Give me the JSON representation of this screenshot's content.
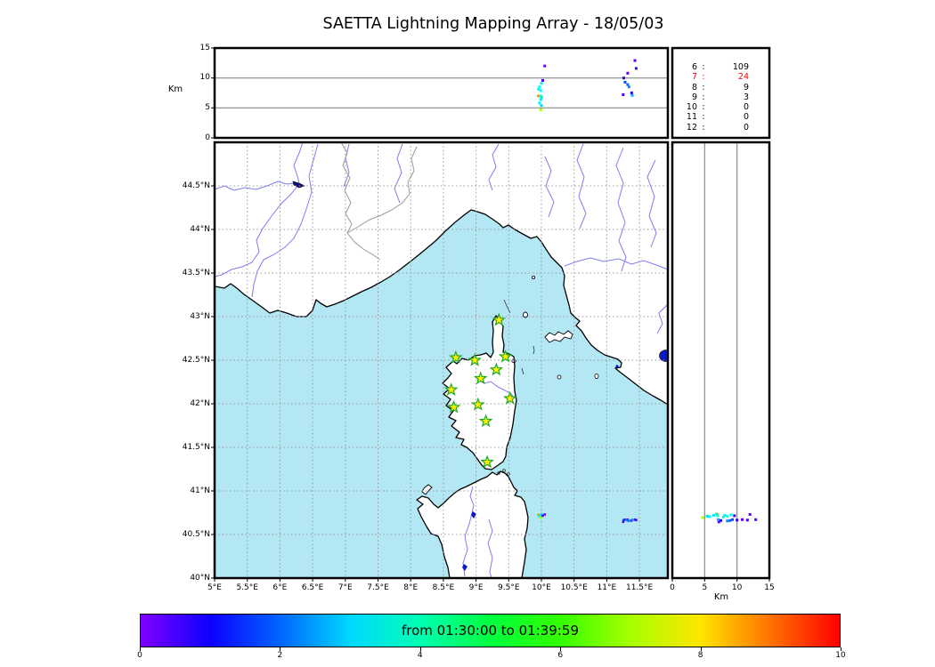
{
  "title": "SAETTA Lightning Mapping Array - 18/05/03",
  "axes": {
    "km_label_top": "Km",
    "km_label_right": "Km",
    "alt_ticks": [
      "0",
      "5",
      "10",
      "15"
    ],
    "lat_ticks": [
      "44.5°N",
      "44°N",
      "43.5°N",
      "43°N",
      "42.5°N",
      "42°N",
      "41.5°N",
      "41°N",
      "40.5°N",
      "40°N"
    ],
    "lon_ticks": [
      "5°E",
      "5.5°E",
      "6°E",
      "6.5°E",
      "7°E",
      "7.5°E",
      "8°E",
      "8.5°E",
      "9°E",
      "9.5°E",
      "10°E",
      "10.5°E",
      "11°E",
      "11.5°E"
    ]
  },
  "station_counts": {
    "rows": [
      {
        "station": "6",
        "count": "109",
        "color": "#000000"
      },
      {
        "station": "7",
        "count": "24",
        "color": "#ff0000"
      },
      {
        "station": "8",
        "count": "9",
        "color": "#000000"
      },
      {
        "station": "9",
        "count": "3",
        "color": "#000000"
      },
      {
        "station": "10",
        "count": "0",
        "color": "#000000"
      },
      {
        "station": "11",
        "count": "0",
        "color": "#000000"
      },
      {
        "station": "12",
        "count": "0",
        "color": "#000000"
      }
    ]
  },
  "colorbar": {
    "label": "from 01:30:00 to 01:39:59",
    "ticks": [
      "0",
      "2",
      "4",
      "6",
      "8",
      "10"
    ],
    "min": 0,
    "max": 10,
    "colormap": "rainbow"
  },
  "map_colors": {
    "sea": "#b2e7f3",
    "land": "#ffffff",
    "coast": "#000000",
    "river": "#7d7df0",
    "border": "#999999",
    "lake": "#0a18c8",
    "grid": "#999999",
    "star_fill": "#ffee00",
    "star_edge": "#22aa22",
    "highlight_red": "#ff0000"
  },
  "chart_data": {
    "type": "scatter",
    "title": "SAETTA Lightning Mapping Array - 18/05/03",
    "panels": [
      {
        "id": "top-lon-alt",
        "x": "longitude_deg_E",
        "xlim": [
          5,
          11.93
        ],
        "y": "altitude_km",
        "ylim": [
          0,
          15
        ],
        "yticks": [
          0,
          5,
          10,
          15
        ],
        "grid": "horizontal lines at 5 and 10 km"
      },
      {
        "id": "map-lon-lat",
        "xlim": [
          5,
          11.93
        ],
        "ylim": [
          40,
          45
        ],
        "grid": "dotted graticule every 0.5 degree"
      },
      {
        "id": "right-alt-lat",
        "x": "altitude_km",
        "xlim": [
          0,
          15
        ],
        "xticks": [
          0,
          5,
          10,
          15
        ],
        "y": "latitude_deg_N",
        "ylim": [
          40,
          45
        ],
        "grid": "vertical lines at 5 and 10 km"
      }
    ],
    "station_count_table": [
      [
        "6",
        109
      ],
      [
        "7",
        24
      ],
      [
        "8",
        9
      ],
      [
        "9",
        3
      ],
      [
        "10",
        0
      ],
      [
        "11",
        0
      ],
      [
        "12",
        0
      ]
    ],
    "highlighted_station_row": "7",
    "lma_stations": [
      {
        "lon": 9.35,
        "lat": 42.96
      },
      {
        "lon": 8.69,
        "lat": 42.53
      },
      {
        "lon": 8.98,
        "lat": 42.5
      },
      {
        "lon": 9.45,
        "lat": 42.54
      },
      {
        "lon": 9.31,
        "lat": 42.39
      },
      {
        "lon": 9.07,
        "lat": 42.29
      },
      {
        "lon": 8.62,
        "lat": 42.16
      },
      {
        "lon": 9.52,
        "lat": 42.06
      },
      {
        "lon": 9.03,
        "lat": 41.99
      },
      {
        "lon": 8.66,
        "lat": 41.96
      },
      {
        "lon": 9.15,
        "lat": 41.8
      },
      {
        "lon": 9.17,
        "lat": 41.33
      }
    ],
    "sources": [
      {
        "lon": 10.05,
        "lat": 40.73,
        "alt_km": 12.0,
        "t_min": 0.2
      },
      {
        "lon": 10.0,
        "lat": 40.725,
        "alt_km": 9.1,
        "t_min": 3.2
      },
      {
        "lon": 9.97,
        "lat": 40.71,
        "alt_km": 8.5,
        "t_min": 3.4
      },
      {
        "lon": 9.955,
        "lat": 40.72,
        "alt_km": 8.1,
        "t_min": 3.5
      },
      {
        "lon": 9.99,
        "lat": 40.7,
        "alt_km": 7.9,
        "t_min": 3.3
      },
      {
        "lon": 9.955,
        "lat": 40.725,
        "alt_km": 7.0,
        "t_min": 8.8
      },
      {
        "lon": 9.985,
        "lat": 40.715,
        "alt_km": 7.0,
        "t_min": 3.6
      },
      {
        "lon": 10.005,
        "lat": 40.735,
        "alt_km": 6.8,
        "t_min": 4.2
      },
      {
        "lon": 9.99,
        "lat": 40.72,
        "alt_km": 6.4,
        "t_min": 3.1
      },
      {
        "lon": 9.97,
        "lat": 40.705,
        "alt_km": 5.8,
        "t_min": 3.3
      },
      {
        "lon": 10.0,
        "lat": 40.71,
        "alt_km": 5.4,
        "t_min": 3.0
      },
      {
        "lon": 9.99,
        "lat": 40.695,
        "alt_km": 4.7,
        "t_min": 7.0
      },
      {
        "lon": 10.02,
        "lat": 40.715,
        "alt_km": 9.6,
        "t_min": 0.5
      },
      {
        "lon": 11.32,
        "lat": 40.67,
        "alt_km": 10.8,
        "t_min": 0.3
      },
      {
        "lon": 11.26,
        "lat": 40.665,
        "alt_km": 10.0,
        "t_min": 0.6
      },
      {
        "lon": 11.28,
        "lat": 40.67,
        "alt_km": 9.3,
        "t_min": 1.8
      },
      {
        "lon": 11.32,
        "lat": 40.66,
        "alt_km": 8.9,
        "t_min": 2.0
      },
      {
        "lon": 11.34,
        "lat": 40.655,
        "alt_km": 8.5,
        "t_min": 2.3
      },
      {
        "lon": 11.38,
        "lat": 40.66,
        "alt_km": 7.5,
        "t_min": 0.8
      },
      {
        "lon": 11.25,
        "lat": 40.645,
        "alt_km": 7.2,
        "t_min": 0.4
      },
      {
        "lon": 11.39,
        "lat": 40.67,
        "alt_km": 7.1,
        "t_min": 2.6
      },
      {
        "lon": 11.45,
        "lat": 40.665,
        "alt_km": 11.6,
        "t_min": 0.5
      },
      {
        "lon": 11.43,
        "lat": 40.67,
        "alt_km": 12.9,
        "t_min": 0.35
      }
    ],
    "colorbar": {
      "label": "from 01:30:00 to 01:39:59",
      "range_min": 0,
      "range_max": 10,
      "colormap": "rainbow"
    }
  }
}
